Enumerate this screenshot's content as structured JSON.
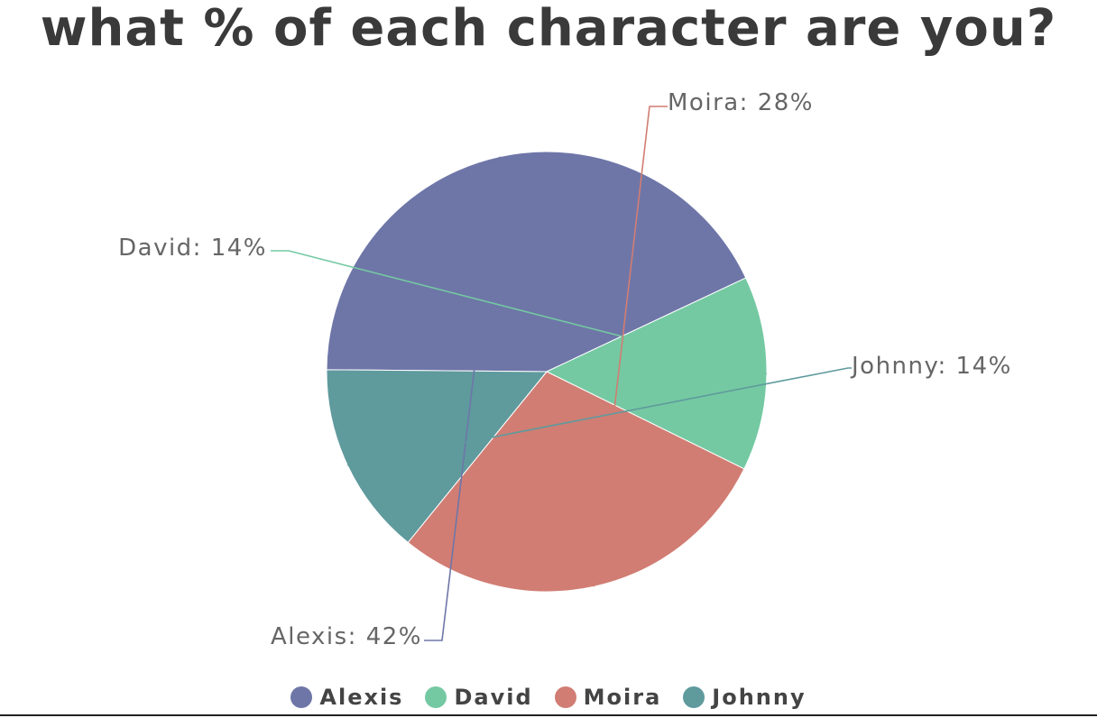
{
  "chart_data": {
    "type": "pie",
    "title": "what % of each character are you?",
    "slices": [
      {
        "name": "Alexis",
        "value": 42,
        "label": "Alexis: 42%",
        "color": "#6e76a8"
      },
      {
        "name": "David",
        "value": 14,
        "label": "David: 14%",
        "color": "#74c9a2"
      },
      {
        "name": "Moira",
        "value": 28,
        "label": "Moira: 28%",
        "color": "#d17d73"
      },
      {
        "name": "Johnny",
        "value": 14,
        "label": "Johnny: 14%",
        "color": "#5f9a9d"
      }
    ],
    "legend_position": "bottom"
  }
}
